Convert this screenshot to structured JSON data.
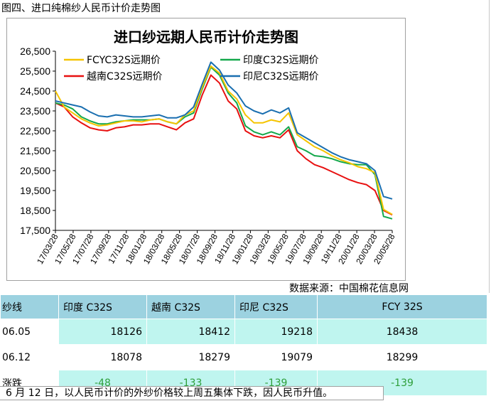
{
  "heading": "图四、进口纯棉纱人民币计价走势图",
  "source": "数据来源：中国棉花信息网",
  "note": "6 月 12 日，以人民币计价的外纱价格较上周五集体下跌，因人民币升值。",
  "table": {
    "header": [
      "纱线",
      "印度 C32S",
      "越南 C32S",
      "印尼 C32S",
      "FCY 32S"
    ],
    "rows": [
      {
        "label": "06.05",
        "values": [
          "18126",
          "18412",
          "19218",
          "18438"
        ]
      },
      {
        "label": "06.12",
        "values": [
          "18078",
          "18279",
          "19079",
          "18299"
        ]
      },
      {
        "label": "涨跌",
        "values": [
          "-48",
          "-133",
          "-139",
          "-139"
        ]
      }
    ]
  },
  "chart_data": {
    "type": "line",
    "title": "进口纱远期人民币计价走势图",
    "xlabel": "",
    "ylabel": "",
    "ylim": [
      17500,
      26500
    ],
    "yticks": [
      "26,500",
      "25,500",
      "24,500",
      "23,500",
      "22,500",
      "21,500",
      "20,500",
      "19,500",
      "18,500",
      "17,500"
    ],
    "xticks": [
      "17/03/28",
      "17/05/28",
      "17/07/28",
      "17/09/28",
      "17/11/28",
      "18/01/28",
      "18/03/28",
      "18/05/28",
      "18/07/28",
      "18/09/28",
      "18/11/28",
      "19/01/28",
      "19/03/28",
      "19/05/28",
      "19/07/28",
      "19/09/28",
      "19/11/28",
      "20/01/28",
      "20/03/28",
      "20/05/28"
    ],
    "legend_position": "top",
    "colors": {
      "FCYC32S远期价": "#f5c400",
      "印度C32S远期价": "#14a84b",
      "越南C32S远期价": "#e81010",
      "印尼C32S远期价": "#1a6fb0"
    },
    "x": [
      "17/03/28",
      "17/04/28",
      "17/05/28",
      "17/06/28",
      "17/07/28",
      "17/08/28",
      "17/09/28",
      "17/10/28",
      "17/11/28",
      "17/12/28",
      "18/01/28",
      "18/02/28",
      "18/03/28",
      "18/04/28",
      "18/05/28",
      "18/06/28",
      "18/07/28",
      "18/08/28",
      "18/09/28",
      "18/10/28",
      "18/11/28",
      "18/12/28",
      "19/01/28",
      "19/02/28",
      "19/03/28",
      "19/04/28",
      "19/05/28",
      "19/06/28",
      "19/07/28",
      "19/08/28",
      "19/09/28",
      "19/10/28",
      "19/11/28",
      "19/12/28",
      "20/01/28",
      "20/02/28",
      "20/03/28",
      "20/04/28",
      "20/05/28",
      "20/06/12"
    ],
    "series": [
      {
        "name": "FCYC32S远期价",
        "values": [
          24500,
          23700,
          23400,
          23100,
          22900,
          22750,
          22800,
          22900,
          23000,
          23000,
          22950,
          23050,
          23100,
          22950,
          22850,
          23300,
          23500,
          24700,
          25750,
          25400,
          24500,
          24100,
          23300,
          22900,
          22900,
          23050,
          22950,
          23400,
          22300,
          22000,
          21700,
          21500,
          21250,
          21050,
          20900,
          20700,
          20600,
          20400,
          18550,
          18300
        ]
      },
      {
        "name": "印度C32S远期价",
        "values": [
          23900,
          23800,
          23600,
          23200,
          23000,
          22850,
          22850,
          22950,
          23000,
          23050,
          23050,
          23050,
          23100,
          22950,
          22850,
          23200,
          23400,
          24600,
          25700,
          25300,
          24400,
          23900,
          22750,
          22450,
          22300,
          22450,
          22300,
          22700,
          21700,
          21500,
          21250,
          21200,
          21100,
          20950,
          20850,
          20800,
          20800,
          20300,
          18200,
          18080
        ]
      },
      {
        "name": "越南C32S远期价",
        "values": [
          23900,
          23700,
          23200,
          22900,
          22650,
          22550,
          22500,
          22650,
          22700,
          22800,
          22800,
          22850,
          22850,
          22700,
          22550,
          22900,
          23100,
          24300,
          25300,
          24900,
          24000,
          23600,
          22500,
          22250,
          22150,
          22250,
          22150,
          22550,
          21500,
          21100,
          20800,
          20650,
          20450,
          20250,
          20050,
          19900,
          19800,
          19500,
          18500,
          18280
        ]
      },
      {
        "name": "印尼C32S远期价",
        "values": [
          24000,
          23900,
          23800,
          23700,
          23450,
          23250,
          23200,
          23300,
          23250,
          23200,
          23200,
          23250,
          23300,
          23150,
          23150,
          23300,
          23700,
          24850,
          25950,
          25550,
          24800,
          24400,
          23750,
          23500,
          23350,
          23550,
          23400,
          23650,
          22400,
          22150,
          21900,
          21650,
          21400,
          21200,
          21050,
          20950,
          20850,
          20500,
          19200,
          19080
        ]
      }
    ]
  }
}
